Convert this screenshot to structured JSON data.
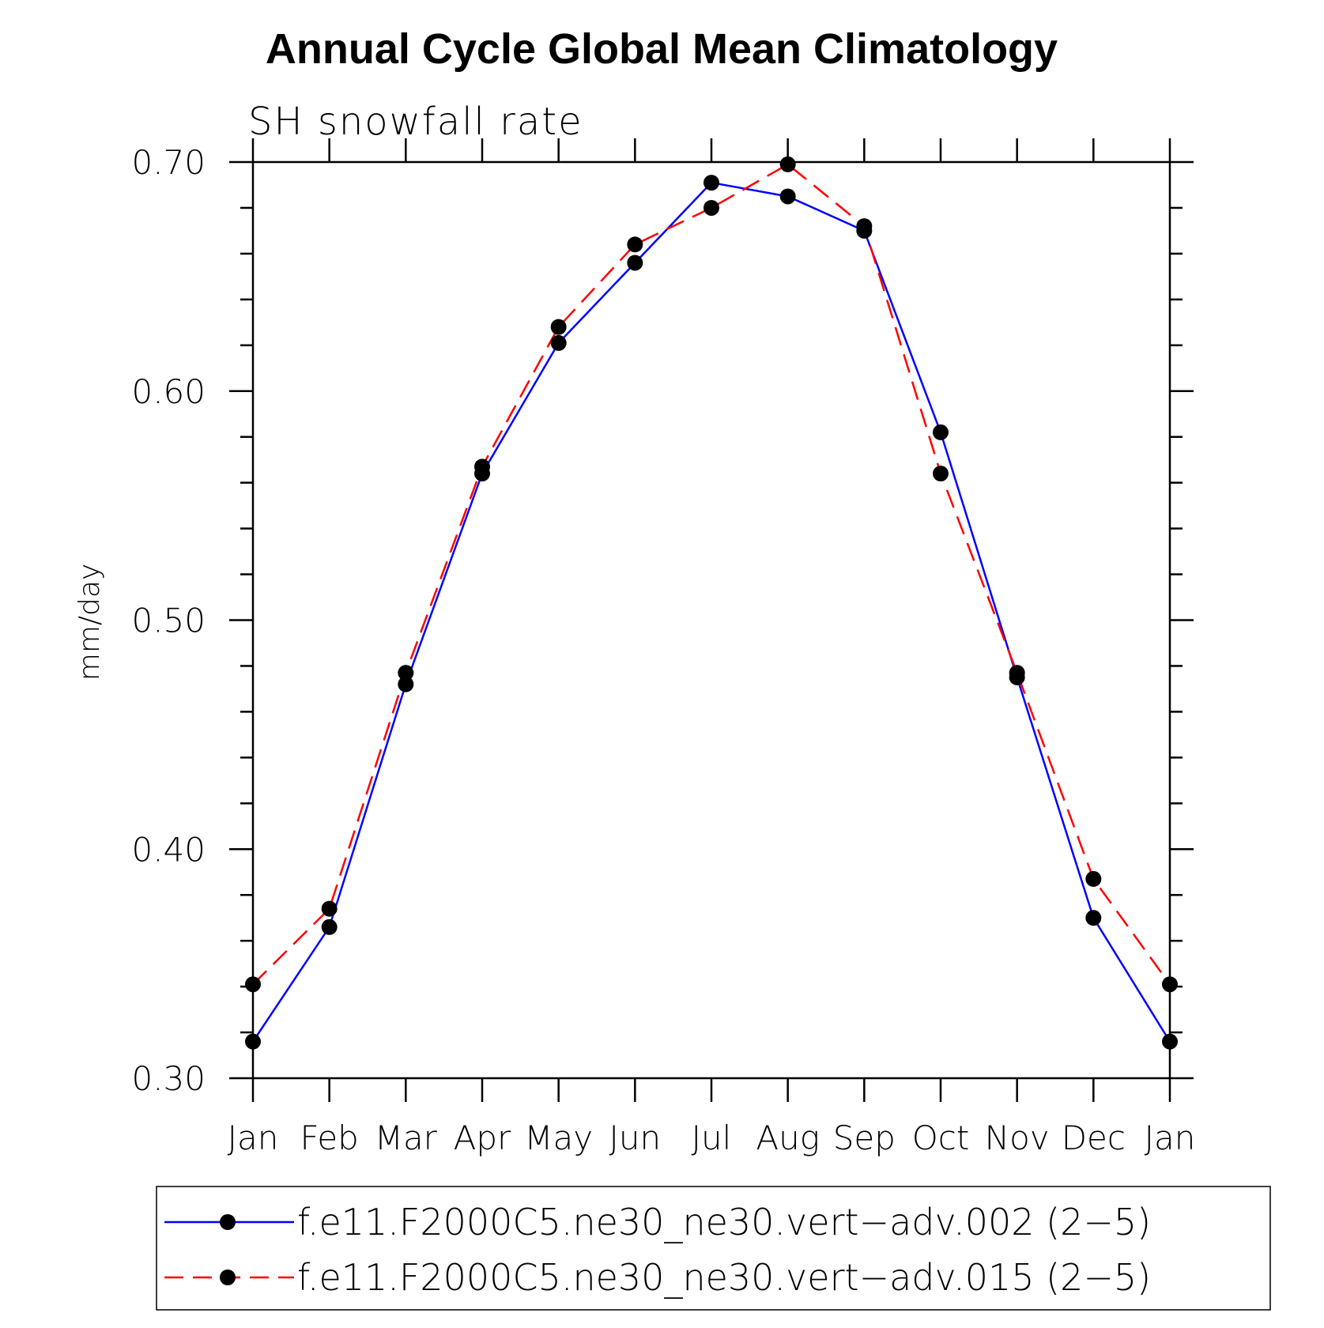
{
  "chart_data": {
    "type": "line",
    "title": "Annual Cycle Global Mean Climatology",
    "subtitle": "SH snowfall rate",
    "xlabel": "",
    "ylabel": "mm/day",
    "categories": [
      "Jan",
      "Feb",
      "Mar",
      "Apr",
      "May",
      "Jun",
      "Jul",
      "Aug",
      "Sep",
      "Oct",
      "Nov",
      "Dec",
      "Jan"
    ],
    "ylim": [
      0.3,
      0.7
    ],
    "yticks": [
      "0.30",
      "0.40",
      "0.50",
      "0.60",
      "0.70"
    ],
    "grid": false,
    "legend_position": "bottom",
    "series": [
      {
        "name": "f.e11.F2000C5.ne30_ne30.vert−adv.002 (2−5)",
        "color": "#0000ff",
        "line_style": "solid",
        "marker": "filled-circle",
        "values": [
          0.316,
          0.366,
          0.472,
          0.564,
          0.621,
          0.656,
          0.691,
          0.685,
          0.67,
          0.582,
          0.475,
          0.37,
          0.316
        ]
      },
      {
        "name": "f.e11.F2000C5.ne30_ne30.vert−adv.015 (2−5)",
        "color": "#ff0000",
        "line_style": "dashed",
        "marker": "filled-circle",
        "values": [
          0.341,
          0.374,
          0.477,
          0.567,
          0.628,
          0.664,
          0.68,
          0.699,
          0.672,
          0.564,
          0.477,
          0.387,
          0.341
        ]
      }
    ]
  }
}
